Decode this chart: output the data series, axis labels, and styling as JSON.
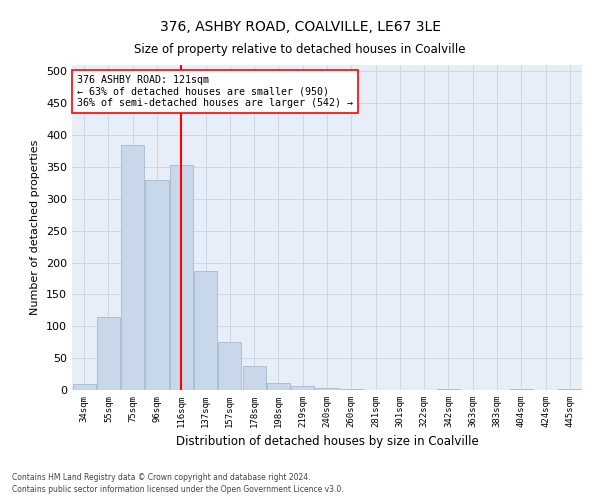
{
  "title": "376, ASHBY ROAD, COALVILLE, LE67 3LE",
  "subtitle": "Size of property relative to detached houses in Coalville",
  "xlabel": "Distribution of detached houses by size in Coalville",
  "ylabel": "Number of detached properties",
  "footnote1": "Contains HM Land Registry data © Crown copyright and database right 2024.",
  "footnote2": "Contains public sector information licensed under the Open Government Licence v3.0.",
  "bar_color": "#c8d8ea",
  "bar_edge_color": "#9ab4cc",
  "grid_color": "#c8d4e4",
  "bg_color": "#e8eef8",
  "property_line_x": 4,
  "property_line_color": "red",
  "annotation_text": "376 ASHBY ROAD: 121sqm\n← 63% of detached houses are smaller (950)\n36% of semi-detached houses are larger (542) →",
  "annotation_box_color": "white",
  "annotation_box_edge": "red",
  "bin_labels": [
    "34sqm",
    "55sqm",
    "75sqm",
    "96sqm",
    "116sqm",
    "137sqm",
    "157sqm",
    "178sqm",
    "198sqm",
    "219sqm",
    "240sqm",
    "260sqm",
    "281sqm",
    "301sqm",
    "322sqm",
    "342sqm",
    "363sqm",
    "383sqm",
    "404sqm",
    "424sqm",
    "445sqm"
  ],
  "bar_heights": [
    10,
    115,
    385,
    330,
    353,
    187,
    75,
    37,
    11,
    6,
    3,
    1,
    0,
    0,
    0,
    2,
    0,
    0,
    2,
    0,
    2
  ],
  "ylim": [
    0,
    510
  ],
  "yticks": [
    0,
    50,
    100,
    150,
    200,
    250,
    300,
    350,
    400,
    450,
    500
  ],
  "title_fontsize": 10,
  "subtitle_fontsize": 8.5,
  "ylabel_fontsize": 8,
  "xlabel_fontsize": 8.5,
  "xtick_fontsize": 6.5,
  "ytick_fontsize": 8,
  "footnote_fontsize": 5.5
}
